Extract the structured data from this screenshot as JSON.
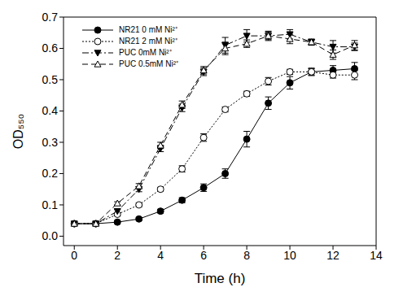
{
  "chart_data": {
    "type": "line",
    "x_label": "Time (h)",
    "y_label": "OD₅₅₀",
    "x": [
      0,
      1,
      2,
      3,
      4,
      5,
      6,
      7,
      8,
      9,
      10,
      11,
      12,
      13
    ],
    "xlim": [
      -0.5,
      14
    ],
    "xticks": [
      0,
      2,
      4,
      6,
      8,
      10,
      12,
      14
    ],
    "ylim": [
      -0.03,
      0.7
    ],
    "yticks": [
      {
        "value": 0,
        "label": "0.0"
      },
      0.1,
      0.2,
      0.3,
      0.4,
      0.5,
      0.6,
      0.7
    ],
    "legend": "upper left",
    "grid": false,
    "series": [
      {
        "name": "NR21 0 mM Ni²⁺",
        "color": "#000000",
        "marker": "circle",
        "line_style": "solid",
        "values": [
          0.04,
          0.04,
          0.045,
          0.055,
          0.08,
          0.115,
          0.155,
          0.2,
          0.31,
          0.425,
          0.49,
          0.525,
          0.53,
          0.535
        ],
        "errors": [
          0.005,
          0.005,
          0.005,
          0.005,
          0.006,
          0.008,
          0.012,
          0.015,
          0.025,
          0.02,
          0.02,
          0.012,
          0.015,
          0.02
        ]
      },
      {
        "name": "NR21 2 mM Ni²⁺",
        "color": "#000000",
        "marker": "circle_open",
        "line_style": "dotted",
        "values": [
          0.04,
          0.04,
          0.07,
          0.1,
          0.15,
          0.215,
          0.315,
          0.405,
          0.455,
          0.495,
          0.525,
          0.525,
          0.515,
          0.515
        ],
        "errors": [
          0.005,
          0.005,
          0.005,
          0.006,
          0.006,
          0.01,
          0.012,
          0.008,
          0.008,
          0.012,
          0.008,
          0.01,
          0.01,
          0.015
        ]
      },
      {
        "name": "PUC 0mM Ni²⁺",
        "color": "#000000",
        "marker": "triangle_down",
        "line_style": "dashdot",
        "values": [
          0.04,
          0.04,
          0.08,
          0.15,
          0.28,
          0.41,
          0.525,
          0.61,
          0.64,
          0.64,
          0.645,
          0.62,
          0.605,
          0.605
        ],
        "errors": [
          0.005,
          0.005,
          0.005,
          0.008,
          0.01,
          0.012,
          0.012,
          0.025,
          0.02,
          0.015,
          0.015,
          0.01,
          0.02,
          0.012
        ]
      },
      {
        "name": "PUC 0.5mM Ni²⁺",
        "color": "#000000",
        "marker": "triangle_up_open",
        "line_style": "dashed",
        "values": [
          0.04,
          0.04,
          0.105,
          0.16,
          0.29,
          0.42,
          0.53,
          0.6,
          0.615,
          0.64,
          0.63,
          0.62,
          0.58,
          0.61
        ],
        "errors": [
          0.005,
          0.005,
          0.005,
          0.008,
          0.01,
          0.012,
          0.012,
          0.02,
          0.012,
          0.012,
          0.015,
          0.008,
          0.015,
          0.015
        ]
      }
    ]
  }
}
